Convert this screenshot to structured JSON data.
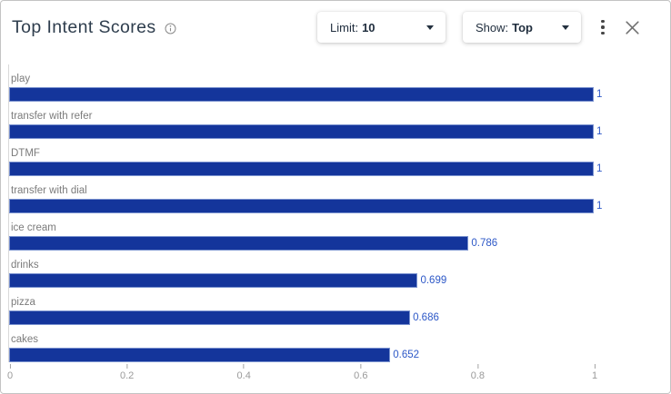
{
  "header": {
    "title": "Top Intent Scores",
    "info_icon": "info-circle-icon",
    "limit_dropdown": {
      "label": "Limit:",
      "value": "10",
      "caret_icon": "caret-down-icon"
    },
    "show_dropdown": {
      "label": "Show:",
      "value": "Top",
      "caret_icon": "caret-down-icon"
    },
    "more_icon": "kebab-menu-icon",
    "close_icon": "close-x-icon"
  },
  "chart_data": {
    "type": "bar",
    "orientation": "horizontal",
    "title": "Top Intent Scores",
    "categories": [
      "play",
      "transfer with refer",
      "DTMF",
      "transfer with dial",
      "ice cream",
      "drinks",
      "pizza",
      "cakes"
    ],
    "values": [
      1,
      1,
      1,
      1,
      0.786,
      0.699,
      0.686,
      0.652
    ],
    "value_labels": [
      "1",
      "1",
      "1",
      "1",
      "0.786",
      "0.699",
      "0.686",
      "0.652"
    ],
    "x_ticks": [
      0,
      0.2,
      0.4,
      0.6,
      0.8,
      1
    ],
    "x_tick_labels": [
      "0",
      "0.2",
      "0.4",
      "0.6",
      "0.8",
      "1"
    ],
    "xlim": [
      0,
      1
    ],
    "grid": false,
    "legend": false,
    "colors": {
      "bar_fill": "#14359b",
      "bar_border": "#7a92cf",
      "value_label": "#2d58c7",
      "category_label": "#7b7b7b",
      "axis_tick_label": "#9a9a9a"
    }
  }
}
